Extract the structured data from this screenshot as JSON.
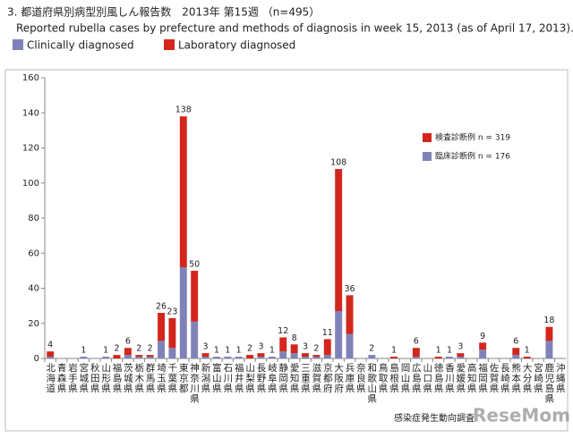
{
  "chart_data": {
    "type": "stacked-bar",
    "title": "3. 都道府県別病型別風しん報告数　2013年 第15週 （n=495）",
    "subtitle": "Reported rubella cases by prefecture and methods of diagnosis in week 15, 2013 (as of April 17, 2013).",
    "categories": [
      "北海道",
      "青森県",
      "岩手県",
      "宮城県",
      "秋田県",
      "山形県",
      "福島県",
      "茨城県",
      "栃木県",
      "群馬県",
      "埼玉県",
      "千葉県",
      "東京都",
      "神奈川県",
      "新潟県",
      "富山県",
      "石川県",
      "福井県",
      "山梨県",
      "長野県",
      "岐阜県",
      "静岡県",
      "愛知県",
      "三重県",
      "滋賀県",
      "京都府",
      "大阪府",
      "兵庫県",
      "奈良県",
      "和歌山県",
      "鳥取県",
      "島根県",
      "岡山県",
      "広島県",
      "山口県",
      "徳島県",
      "香川県",
      "愛媛県",
      "高知県",
      "福岡県",
      "佐賀県",
      "長崎県",
      "熊本県",
      "大分県",
      "宮崎県",
      "鹿児島県",
      "沖縄県"
    ],
    "series": [
      {
        "name": "Clinically diagnosed",
        "color": "#7f82b8",
        "values": [
          1,
          0,
          0,
          1,
          0,
          1,
          0,
          2,
          1,
          1,
          10,
          6,
          52,
          21,
          1,
          1,
          1,
          1,
          0,
          1,
          1,
          4,
          3,
          1,
          1,
          2,
          27,
          14,
          0,
          2,
          0,
          0,
          0,
          1,
          0,
          0,
          1,
          1,
          0,
          5,
          0,
          0,
          2,
          0,
          0,
          10,
          0
        ]
      },
      {
        "name": "Laboratory diagnosed",
        "color": "#d3261c",
        "values": [
          3,
          0,
          0,
          0,
          0,
          0,
          2,
          4,
          1,
          1,
          16,
          17,
          86,
          29,
          2,
          0,
          0,
          0,
          2,
          2,
          0,
          8,
          5,
          2,
          1,
          9,
          81,
          22,
          0,
          0,
          0,
          1,
          0,
          5,
          0,
          1,
          0,
          2,
          0,
          4,
          0,
          0,
          4,
          1,
          0,
          8,
          0
        ]
      }
    ],
    "total_labels": [
      4,
      null,
      null,
      1,
      null,
      1,
      2,
      6,
      2,
      2,
      26,
      23,
      138,
      50,
      3,
      1,
      1,
      1,
      2,
      3,
      1,
      12,
      8,
      3,
      2,
      11,
      108,
      36,
      null,
      2,
      null,
      1,
      null,
      6,
      null,
      1,
      1,
      3,
      null,
      9,
      null,
      null,
      6,
      1,
      null,
      18,
      null
    ],
    "legend_notes": [
      "検査診断例 n = 319",
      "臨床診断例 n = 176"
    ],
    "ylim": [
      0,
      160
    ],
    "yticks": [
      0,
      20,
      40,
      60,
      80,
      100,
      120,
      140,
      160
    ],
    "source": "感染症発生動向調査",
    "watermark": "ReseMom"
  }
}
